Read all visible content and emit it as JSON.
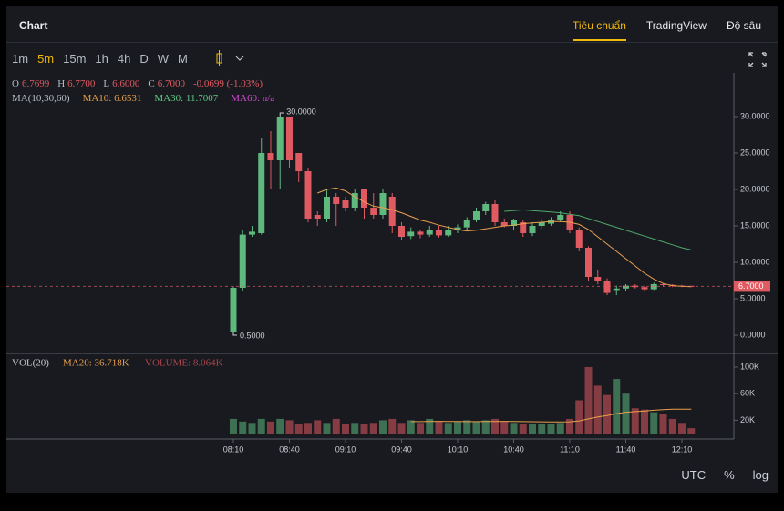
{
  "header": {
    "title": "Chart",
    "tabs": [
      "Tiêu chuẩn",
      "TradingView",
      "Độ sâu"
    ],
    "active_tab": 0
  },
  "intervals": {
    "items": [
      "1m",
      "5m",
      "15m",
      "1h",
      "4h",
      "D",
      "W",
      "M"
    ],
    "active": 1
  },
  "ohlc": [
    {
      "label": "O",
      "value": "6.7699"
    },
    {
      "label": "H",
      "value": "6.7700"
    },
    {
      "label": "L",
      "value": "6.6000"
    },
    {
      "label": "C",
      "value": "6.7000"
    }
  ],
  "change": "-0.0699 (-1.03%)",
  "ma_legend": {
    "label": "MA(10,30,60)",
    "items": [
      {
        "text": "MA10: 6.6531",
        "color": "#e8a04c"
      },
      {
        "text": "MA30: 11.7007",
        "color": "#5fc87e"
      },
      {
        "text": "MA60: n/a",
        "color": "#d04bd0"
      }
    ]
  },
  "chart_data": {
    "type": "candlestick",
    "up_color": "#5fb87e",
    "down_color": "#e05a61",
    "candles": {
      "open": [
        0.5,
        6.5,
        13.8,
        14,
        25,
        24,
        30,
        25,
        22.5,
        16.5,
        16,
        19,
        18.5,
        17.5,
        20,
        17.5,
        16.5,
        19,
        15,
        13.6,
        14.2,
        13.8,
        14.5,
        13.7,
        14.5,
        14.8,
        15.8,
        17,
        18,
        15.5,
        15,
        15.5,
        14,
        15,
        15.3,
        15.8,
        16.5,
        14.5,
        12,
        8,
        7.5,
        6.2,
        6.4,
        6.8,
        6.6,
        6.3,
        7,
        6.9,
        6.8,
        6.7699
      ],
      "high": [
        6.7,
        14.5,
        15,
        27,
        28,
        30,
        30,
        25,
        23,
        17,
        20,
        19.5,
        19,
        20,
        20,
        19.5,
        20,
        19.5,
        15.5,
        14.8,
        14.5,
        15,
        15,
        15,
        15.2,
        16.2,
        17.5,
        18.3,
        18.5,
        16,
        16,
        15.8,
        15.5,
        16,
        16.2,
        17,
        17,
        14.8,
        12.2,
        9,
        7.8,
        6.8,
        7,
        7,
        6.8,
        7.2,
        7.1,
        7,
        6.9,
        6.77
      ],
      "low": [
        0.5,
        6,
        13.5,
        13.8,
        20,
        20,
        23,
        21,
        15.5,
        15,
        15.5,
        15,
        17,
        17,
        16,
        16,
        16,
        14,
        13,
        13.2,
        13.3,
        13.5,
        13.4,
        13.5,
        14,
        14.5,
        15.5,
        16.5,
        15,
        14.8,
        14.5,
        13.5,
        13.6,
        14.6,
        15,
        15.5,
        14,
        11.5,
        7.5,
        7,
        5.5,
        5.5,
        6,
        6.4,
        6.1,
        6.2,
        6.7,
        6.6,
        6.6,
        6.6
      ],
      "close": [
        6.5,
        13.8,
        14.2,
        25,
        24,
        30,
        24,
        22.5,
        16,
        16,
        19,
        18,
        17.5,
        19.5,
        17.5,
        16.5,
        19.5,
        15,
        13.5,
        14.2,
        13.8,
        14.5,
        13.7,
        14.5,
        14.8,
        15.8,
        17,
        18,
        15.5,
        15,
        15.8,
        14,
        15,
        15.5,
        15.8,
        16.5,
        14.5,
        12,
        8,
        7.5,
        5.8,
        6.4,
        6.8,
        6.6,
        6.3,
        7,
        6.9,
        6.75,
        6.7,
        6.7
      ]
    },
    "ylim": [
      -2.5,
      36
    ],
    "yticks": [
      {
        "value": 0,
        "label": "0.0000"
      },
      {
        "value": 5,
        "label": "5.0000"
      },
      {
        "value": 10,
        "label": "10.0000"
      },
      {
        "value": 15,
        "label": "15.0000"
      },
      {
        "value": 20,
        "label": "20.0000"
      },
      {
        "value": 25,
        "label": "25.0000"
      },
      {
        "value": 30,
        "label": "30.0000"
      }
    ],
    "xlim": [
      -24.29,
      53.56
    ],
    "xticks": [
      {
        "value": 0,
        "label": "08:10"
      },
      {
        "value": 6,
        "label": "08:40"
      },
      {
        "value": 12,
        "label": "09:10"
      },
      {
        "value": 18,
        "label": "09:40"
      },
      {
        "value": 24,
        "label": "10:10"
      },
      {
        "value": 30,
        "label": "10:40"
      },
      {
        "value": 36,
        "label": "11:10"
      },
      {
        "value": 42,
        "label": "11:40"
      },
      {
        "value": 48,
        "label": "12:10"
      }
    ],
    "ma": [
      {
        "name": "MA10",
        "color": "#e8a04c",
        "values": [
          null,
          null,
          null,
          null,
          null,
          null,
          null,
          null,
          null,
          19.5,
          20,
          20.2,
          19.8,
          19,
          18.3,
          17.7,
          17.5,
          17.2,
          16.8,
          16.3,
          15.8,
          15.5,
          15.1,
          14.8,
          14.5,
          14.3,
          14.4,
          14.6,
          14.8,
          15,
          15.1,
          15.3,
          15.4,
          15.5,
          15.6,
          15.6,
          15.5,
          15.2,
          14.5,
          13.5,
          12.5,
          11.5,
          10.5,
          9.5,
          8.5,
          7.7,
          7.1,
          6.8,
          6.7,
          6.6531
        ]
      },
      {
        "name": "MA30",
        "color": "#4fa86a",
        "values": [
          null,
          null,
          null,
          null,
          null,
          null,
          null,
          null,
          null,
          null,
          null,
          null,
          null,
          null,
          null,
          null,
          null,
          null,
          null,
          null,
          null,
          null,
          null,
          null,
          null,
          null,
          null,
          null,
          null,
          17,
          17.1,
          17.2,
          17.1,
          17,
          16.9,
          16.8,
          16.6,
          16.4,
          16,
          15.6,
          15.2,
          14.8,
          14.4,
          14,
          13.6,
          13.2,
          12.8,
          12.4,
          12,
          11.7007
        ]
      }
    ],
    "last_price": {
      "value": 6.7,
      "label": "6.7000"
    },
    "high_label": {
      "index": 5,
      "value": 30,
      "label": "30.0000"
    },
    "low_label": {
      "index": 0,
      "value": 0.5,
      "label": "0.5000"
    },
    "volume": {
      "label": "VOL(20)",
      "ma_text": "MA20: 36.718K",
      "volume_text": "VOLUME: 8.064K",
      "ma_color": "#e8a04c",
      "values": [
        22,
        18,
        16,
        22,
        18,
        22,
        20,
        14,
        16,
        20,
        16,
        22,
        14,
        16,
        14,
        16,
        20,
        22,
        16,
        20,
        16,
        22,
        18,
        16,
        18,
        20,
        18,
        20,
        22,
        18,
        16,
        14,
        14,
        14,
        14,
        16,
        22,
        50,
        100,
        72,
        58,
        82,
        60,
        38,
        36,
        32,
        30,
        22,
        16,
        8.064
      ],
      "ma_values": [
        null,
        null,
        null,
        null,
        null,
        null,
        null,
        null,
        null,
        null,
        null,
        null,
        null,
        null,
        null,
        null,
        null,
        null,
        null,
        18,
        18,
        18.2,
        18.3,
        18.2,
        18.1,
        18,
        18,
        18.1,
        18.2,
        18.3,
        18.2,
        18,
        17.8,
        17.6,
        17.5,
        17.5,
        17.6,
        19,
        22,
        25,
        27,
        30,
        32,
        33,
        34,
        35,
        36,
        36.5,
        36.7,
        36.718
      ],
      "ylim": [
        0,
        115
      ],
      "yticks": [
        {
          "value": 20,
          "label": "20K"
        },
        {
          "value": 60,
          "label": "60K"
        },
        {
          "value": 100,
          "label": "100K"
        }
      ]
    }
  },
  "footer": [
    "UTC",
    "%",
    "log"
  ]
}
